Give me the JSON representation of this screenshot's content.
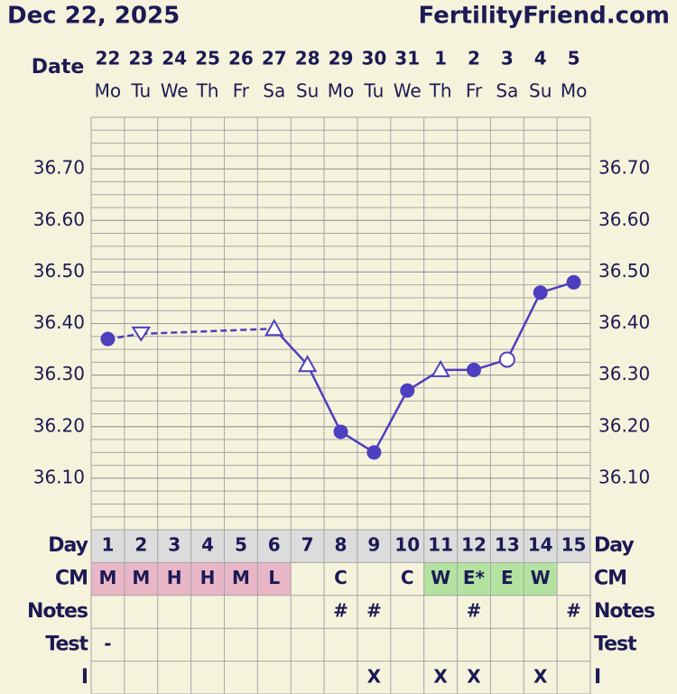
{
  "chart_data": {
    "type": "line",
    "title": "Dec 22, 2025",
    "site": "FertilityFriend.com",
    "date_label": "Date",
    "categories": [
      "22",
      "23",
      "24",
      "25",
      "26",
      "27",
      "28",
      "29",
      "30",
      "31",
      "1",
      "2",
      "3",
      "4",
      "5"
    ],
    "weekdays": [
      "Mo",
      "Tu",
      "We",
      "Th",
      "Fr",
      "Sa",
      "Su",
      "Mo",
      "Tu",
      "We",
      "Th",
      "Fr",
      "Sa",
      "Su",
      "Mo"
    ],
    "series": [
      {
        "name": "Temperature",
        "color": "#4d3fbf",
        "values": [
          36.37,
          36.38,
          null,
          null,
          null,
          36.39,
          36.32,
          36.19,
          36.15,
          36.27,
          36.31,
          36.31,
          36.33,
          36.46,
          36.48
        ],
        "markers": [
          "dot",
          "triangle-down",
          null,
          null,
          null,
          "triangle-up",
          "triangle-up",
          "dot",
          "dot",
          "dot",
          "triangle-up",
          "dot",
          "open-circle",
          "dot",
          "dot"
        ],
        "line_style": [
          null,
          "dashed",
          null,
          null,
          null,
          "dashed",
          "solid",
          "solid",
          "solid",
          "solid",
          "solid",
          "solid",
          "solid",
          "solid",
          "solid"
        ]
      }
    ],
    "ylim": [
      36.0,
      36.8
    ],
    "yticks": [
      {
        "value": 36.1,
        "label": "36.10"
      },
      {
        "value": 36.2,
        "label": "36.20"
      },
      {
        "value": 36.3,
        "label": "36.30"
      },
      {
        "value": 36.4,
        "label": "36.40"
      },
      {
        "value": 36.5,
        "label": "36.50"
      },
      {
        "value": 36.6,
        "label": "36.60"
      },
      {
        "value": 36.7,
        "label": "36.70"
      }
    ],
    "minor_grid_step": 0.025,
    "grid": true,
    "table": {
      "row_labels": [
        "Day",
        "CM",
        "Notes",
        "Test",
        "I"
      ],
      "day": [
        1,
        2,
        3,
        4,
        5,
        6,
        7,
        8,
        9,
        10,
        11,
        12,
        13,
        14,
        15
      ],
      "cm": [
        "M",
        "M",
        "H",
        "H",
        "M",
        "L",
        null,
        "C",
        null,
        "C",
        "W",
        "E*",
        "E",
        "W",
        null
      ],
      "cm_colors": [
        "#e8b6c6",
        "#e8b6c6",
        "#e8b6c6",
        "#e8b6c6",
        "#e8b6c6",
        "#e8b6c6",
        null,
        null,
        null,
        null,
        "#b4e2a0",
        "#b4e2a0",
        "#b4e2a0",
        "#b4e2a0",
        null
      ],
      "day_color": "#dcdcdc",
      "notes": [
        null,
        null,
        null,
        null,
        null,
        null,
        null,
        "#",
        "#",
        null,
        null,
        "#",
        null,
        null,
        "#"
      ],
      "test": [
        "-",
        null,
        null,
        null,
        null,
        null,
        null,
        null,
        null,
        null,
        null,
        null,
        null,
        null,
        null
      ],
      "intercourse": [
        null,
        null,
        null,
        null,
        null,
        null,
        null,
        null,
        "X",
        null,
        "X",
        "X",
        null,
        "X",
        null
      ]
    }
  }
}
